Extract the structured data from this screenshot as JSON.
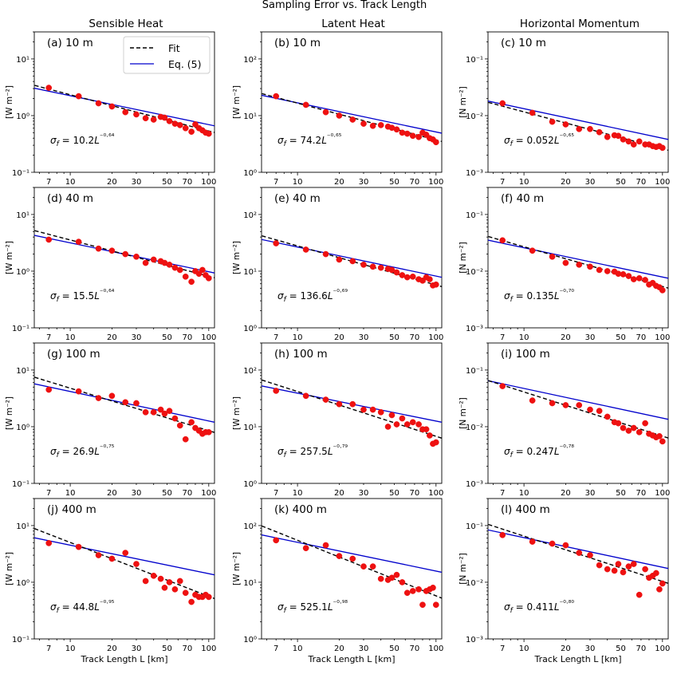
{
  "figure": {
    "title": "Sampling Error vs. Track Length",
    "column_titles": [
      "Sensible Heat",
      "Latent Heat",
      "Horizontal Momentum"
    ],
    "xlabel": "Track Length L [km]",
    "x_ticks": [
      "7",
      "10",
      "20",
      "30",
      "50",
      "70",
      "100"
    ],
    "legend": {
      "fit": "Fit",
      "eq": "Eq. (5)"
    }
  },
  "colors": {
    "fit": "#000000",
    "eq": "#0000cc",
    "points": "#ee1111"
  },
  "chart_data": [
    {
      "type": "scatter",
      "panel": "(a)",
      "height": "10 m",
      "row": 0,
      "col": 0,
      "ylabel": "[W m⁻²]",
      "yrange": [
        0.1,
        30
      ],
      "yticks": [
        "10⁻¹",
        "10⁰",
        "10¹"
      ],
      "annotation": "σf = 10.2L⁻⁰·⁶⁴",
      "fit": {
        "a": 10.2,
        "b": -0.64
      },
      "eq": {
        "y_at_5": 3.2,
        "y_at_110": 0.66
      },
      "x": [
        7,
        11.5,
        16,
        20,
        25,
        30,
        35,
        40,
        45,
        48,
        52,
        57,
        62,
        68,
        75,
        80,
        85,
        90,
        95,
        100
      ],
      "y": [
        3.1,
        2.2,
        1.65,
        1.45,
        1.15,
        1.05,
        0.9,
        0.85,
        0.95,
        0.92,
        0.8,
        0.72,
        0.68,
        0.6,
        0.52,
        0.7,
        0.6,
        0.55,
        0.5,
        0.48
      ]
    },
    {
      "type": "scatter",
      "panel": "(b)",
      "height": "10 m",
      "row": 0,
      "col": 1,
      "ylabel": "[W m⁻²]",
      "yrange": [
        1,
        300
      ],
      "yticks": [
        "10⁰",
        "10¹",
        "10²"
      ],
      "annotation": "σf = 74.2L⁻⁰·⁶⁵",
      "fit": {
        "a": 74.2,
        "b": -0.65
      },
      "eq": {
        "y_at_5": 24,
        "y_at_110": 4.9
      },
      "x": [
        7,
        11.5,
        16,
        20,
        25,
        30,
        35,
        40,
        45,
        48,
        52,
        57,
        62,
        68,
        75,
        80,
        85,
        90,
        95,
        100
      ],
      "y": [
        22,
        15.5,
        11.5,
        10,
        8.5,
        7.2,
        6.6,
        6.8,
        6.4,
        6.1,
        5.7,
        5,
        4.8,
        4.4,
        4.2,
        5,
        4.6,
        4,
        3.8,
        3.4
      ]
    },
    {
      "type": "scatter",
      "panel": "(c)",
      "height": "10 m",
      "row": 0,
      "col": 2,
      "ylabel": "[N m⁻²]",
      "yrange": [
        0.001,
        0.3
      ],
      "yticks": [
        "10⁻³",
        "10⁻²",
        "10⁻¹"
      ],
      "annotation": "σf = 0.052L⁻⁰·⁶⁵",
      "fit": {
        "a": 0.052,
        "b": -0.65
      },
      "eq": {
        "y_at_5": 0.019,
        "y_at_110": 0.0038
      },
      "x": [
        7,
        11.5,
        16,
        20,
        25,
        30,
        35,
        40,
        45,
        48,
        52,
        57,
        62,
        68,
        75,
        80,
        85,
        90,
        95,
        100
      ],
      "y": [
        0.0165,
        0.0112,
        0.0078,
        0.007,
        0.0058,
        0.0058,
        0.0051,
        0.0042,
        0.0045,
        0.0044,
        0.0038,
        0.0035,
        0.0031,
        0.0035,
        0.0031,
        0.0031,
        0.0029,
        0.0028,
        0.0029,
        0.0027
      ]
    },
    {
      "type": "scatter",
      "panel": "(d)",
      "height": "40 m",
      "row": 1,
      "col": 0,
      "ylabel": "[W m⁻²]",
      "yrange": [
        0.1,
        30
      ],
      "yticks": [
        "10⁻¹",
        "10⁰",
        "10¹"
      ],
      "annotation": "σf = 15.5L⁻⁰·⁶⁴",
      "fit": {
        "a": 15.5,
        "b": -0.64
      },
      "eq": {
        "y_at_5": 4.5,
        "y_at_110": 0.93
      },
      "x": [
        7,
        11.5,
        16,
        20,
        25,
        30,
        35,
        40,
        45,
        48,
        52,
        57,
        62,
        68,
        75,
        80,
        85,
        90,
        95,
        100
      ],
      "y": [
        3.6,
        3.3,
        2.5,
        2.3,
        2,
        1.8,
        1.4,
        1.6,
        1.5,
        1.4,
        1.3,
        1.15,
        1.05,
        0.8,
        0.65,
        1,
        0.9,
        1.05,
        0.85,
        0.75
      ]
    },
    {
      "type": "scatter",
      "panel": "(e)",
      "height": "40 m",
      "row": 1,
      "col": 1,
      "ylabel": "[W m⁻²]",
      "yrange": [
        1,
        300
      ],
      "yticks": [
        "10⁰",
        "10¹",
        "10²"
      ],
      "annotation": "σf = 136.6L⁻⁰·⁶⁹",
      "fit": {
        "a": 136.6,
        "b": -0.69
      },
      "eq": {
        "y_at_5": 38,
        "y_at_110": 7.8
      },
      "x": [
        7,
        11.5,
        16,
        20,
        25,
        30,
        35,
        40,
        45,
        48,
        52,
        57,
        62,
        68,
        75,
        80,
        85,
        90,
        95,
        100
      ],
      "y": [
        31,
        24,
        20,
        16,
        15,
        13,
        12,
        11.5,
        11,
        10.5,
        9.5,
        8.5,
        7.8,
        8,
        7.2,
        6.8,
        7.8,
        7.2,
        5.6,
        5.8
      ]
    },
    {
      "type": "scatter",
      "panel": "(f)",
      "height": "40 m",
      "row": 1,
      "col": 2,
      "ylabel": "[N m⁻²]",
      "yrange": [
        0.001,
        0.3
      ],
      "yticks": [
        "10⁻³",
        "10⁻²",
        "10⁻¹"
      ],
      "annotation": "σf = 0.135L⁻⁰·⁷⁰",
      "fit": {
        "a": 0.135,
        "b": -0.7
      },
      "eq": {
        "y_at_5": 0.037,
        "y_at_110": 0.0075
      },
      "x": [
        7,
        11.5,
        16,
        20,
        25,
        30,
        35,
        40,
        45,
        48,
        52,
        57,
        62,
        68,
        75,
        80,
        85,
        90,
        95,
        100
      ],
      "y": [
        0.035,
        0.023,
        0.018,
        0.014,
        0.013,
        0.012,
        0.0105,
        0.01,
        0.0098,
        0.009,
        0.0088,
        0.0082,
        0.0072,
        0.0075,
        0.007,
        0.0058,
        0.0062,
        0.0055,
        0.0052,
        0.0046
      ]
    },
    {
      "type": "scatter",
      "panel": "(g)",
      "height": "100 m",
      "row": 2,
      "col": 0,
      "ylabel": "[W m⁻²]",
      "yrange": [
        0.1,
        30
      ],
      "yticks": [
        "10⁻¹",
        "10⁰",
        "10¹"
      ],
      "annotation": "σf = 26.9L⁻⁰·⁷⁵",
      "fit": {
        "a": 26.9,
        "b": -0.75
      },
      "eq": {
        "y_at_5": 6.0,
        "y_at_110": 1.2
      },
      "x": [
        7,
        11.5,
        16,
        20,
        25,
        30,
        35,
        40,
        45,
        48,
        52,
        57,
        62,
        68,
        75,
        80,
        85,
        90,
        95,
        100
      ],
      "y": [
        4.5,
        4.2,
        3.2,
        3.5,
        2.7,
        2.6,
        1.8,
        1.8,
        2,
        1.7,
        1.9,
        1.4,
        1.05,
        0.6,
        1.2,
        0.95,
        0.85,
        0.75,
        0.8,
        0.8
      ]
    },
    {
      "type": "scatter",
      "panel": "(h)",
      "height": "100 m",
      "row": 2,
      "col": 1,
      "ylabel": "[W m⁻²]",
      "yrange": [
        1,
        300
      ],
      "yticks": [
        "10⁰",
        "10¹",
        "10²"
      ],
      "annotation": "σf = 257.5L⁻⁰·⁷⁹",
      "fit": {
        "a": 257.5,
        "b": -0.79
      },
      "eq": {
        "y_at_5": 55,
        "y_at_110": 12
      },
      "x": [
        7,
        11.5,
        16,
        20,
        25,
        30,
        35,
        40,
        45,
        48,
        52,
        57,
        62,
        68,
        75,
        80,
        85,
        90,
        95,
        100
      ],
      "y": [
        43,
        35,
        30,
        25,
        25,
        20,
        20,
        18,
        10,
        16,
        11,
        14,
        11,
        12,
        11,
        9,
        9,
        7,
        5,
        5.3
      ]
    },
    {
      "type": "scatter",
      "panel": "(i)",
      "height": "100 m",
      "row": 2,
      "col": 2,
      "ylabel": "[N m⁻²]",
      "yrange": [
        0.001,
        0.3
      ],
      "yticks": [
        "10⁻³",
        "10⁻²",
        "10⁻¹"
      ],
      "annotation": "σf = 0.247L⁻⁰·⁷⁸",
      "fit": {
        "a": 0.247,
        "b": -0.78
      },
      "eq": {
        "y_at_5": 0.068,
        "y_at_110": 0.0135
      },
      "x": [
        7,
        11.5,
        16,
        20,
        25,
        30,
        35,
        40,
        45,
        48,
        52,
        57,
        62,
        68,
        75,
        80,
        85,
        90,
        95,
        100
      ],
      "y": [
        0.052,
        0.029,
        0.026,
        0.024,
        0.024,
        0.02,
        0.019,
        0.015,
        0.012,
        0.0115,
        0.0095,
        0.0085,
        0.0095,
        0.008,
        0.0115,
        0.0075,
        0.007,
        0.0065,
        0.0068,
        0.0055
      ]
    },
    {
      "type": "scatter",
      "panel": "(j)",
      "height": "400 m",
      "row": 3,
      "col": 0,
      "ylabel": "[W m⁻²]",
      "yrange": [
        0.1,
        30
      ],
      "yticks": [
        "10⁻¹",
        "10⁰",
        "10¹"
      ],
      "annotation": "σf = 44.8L⁻⁰·⁹⁵",
      "fit": {
        "a": 44.8,
        "b": -0.95
      },
      "eq": {
        "y_at_5": 6.4,
        "y_at_110": 1.35
      },
      "x": [
        7,
        11.5,
        16,
        20,
        25,
        30,
        35,
        40,
        45,
        48,
        52,
        57,
        62,
        68,
        75,
        80,
        85,
        90,
        95,
        100
      ],
      "y": [
        4.9,
        4.2,
        3.0,
        2.6,
        3.3,
        2.1,
        1.05,
        1.3,
        1.15,
        0.8,
        1.0,
        0.75,
        1.05,
        0.65,
        0.45,
        0.6,
        0.55,
        0.55,
        0.6,
        0.55
      ]
    },
    {
      "type": "scatter",
      "panel": "(k)",
      "height": "400 m",
      "row": 3,
      "col": 1,
      "ylabel": "[W m⁻²]",
      "yrange": [
        1,
        300
      ],
      "yticks": [
        "10⁰",
        "10¹",
        "10²"
      ],
      "annotation": "σf = 525.1L⁻⁰·⁹⁸",
      "fit": {
        "a": 525.1,
        "b": -0.98
      },
      "eq": {
        "y_at_5": 72,
        "y_at_110": 15
      },
      "x": [
        7,
        11.5,
        16,
        20,
        25,
        30,
        35,
        40,
        45,
        48,
        52,
        57,
        62,
        68,
        75,
        80,
        85,
        90,
        95,
        100
      ],
      "y": [
        55,
        40,
        45,
        29,
        26,
        19,
        19,
        11.5,
        11,
        12,
        13.5,
        10,
        6.5,
        7,
        7.5,
        4,
        7,
        7.5,
        8,
        4
      ]
    },
    {
      "type": "scatter",
      "panel": "(l)",
      "height": "400 m",
      "row": 3,
      "col": 2,
      "ylabel": "[N m⁻²]",
      "yrange": [
        0.001,
        0.3
      ],
      "yticks": [
        "10⁻³",
        "10⁻²",
        "10⁻¹"
      ],
      "annotation": "σf = 0.411L⁻⁰·⁸⁰",
      "fit": {
        "a": 0.411,
        "b": -0.8
      },
      "eq": {
        "y_at_5": 0.088,
        "y_at_110": 0.0175
      },
      "x": [
        7,
        11.5,
        16,
        20,
        25,
        30,
        35,
        40,
        45,
        48,
        52,
        57,
        62,
        68,
        75,
        80,
        85,
        90,
        95,
        100
      ],
      "y": [
        0.068,
        0.052,
        0.048,
        0.045,
        0.033,
        0.03,
        0.02,
        0.017,
        0.016,
        0.021,
        0.015,
        0.019,
        0.021,
        0.006,
        0.017,
        0.012,
        0.013,
        0.0145,
        0.0075,
        0.0095
      ]
    }
  ]
}
